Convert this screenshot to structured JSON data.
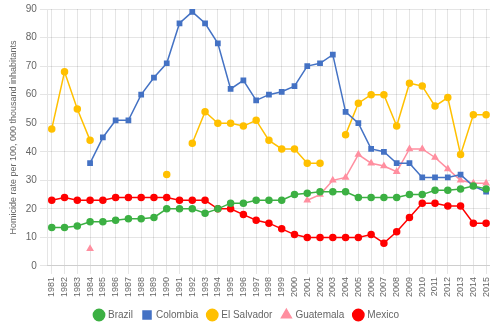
{
  "chart_data": {
    "type": "line",
    "x": [
      1981,
      1982,
      1983,
      1984,
      1985,
      1986,
      1987,
      1988,
      1989,
      1990,
      1991,
      1992,
      1993,
      1994,
      1995,
      1996,
      1997,
      1998,
      1999,
      2000,
      2001,
      2002,
      2003,
      2004,
      2005,
      2006,
      2007,
      2008,
      2009,
      2010,
      2011,
      2012,
      2013,
      2014,
      2015
    ],
    "series": [
      {
        "name": "Brazil",
        "color": "#3cb043",
        "marker": "circle",
        "values": [
          13.5,
          13.5,
          14.0,
          15.5,
          15.5,
          16.0,
          16.5,
          16.5,
          17.0,
          20.0,
          20.0,
          20.0,
          18.5,
          20.0,
          22.0,
          22.0,
          23.0,
          23.0,
          23.0,
          25.0,
          25.5,
          26.0,
          26.0,
          26.0,
          24.0,
          24.0,
          24.0,
          24.0,
          25.0,
          25.0,
          26.5,
          26.5,
          27.0,
          28.0,
          27.0
        ]
      },
      {
        "name": "Colombia",
        "color": "#4472c4",
        "marker": "square",
        "values": [
          null,
          null,
          null,
          36,
          45,
          51,
          51,
          60,
          66,
          71,
          85,
          89,
          85,
          78,
          62,
          65,
          58,
          60,
          61,
          63,
          70,
          71,
          74,
          54,
          50,
          41,
          40,
          36,
          36,
          31,
          31,
          31,
          32,
          28,
          26
        ]
      },
      {
        "name": "El Salvador",
        "color": "#ffc000",
        "marker": "circle",
        "values": [
          48,
          68,
          55,
          44,
          null,
          null,
          null,
          null,
          null,
          32,
          null,
          43,
          54,
          50,
          50,
          49,
          51,
          44,
          41,
          41,
          36,
          36,
          null,
          46,
          57,
          60,
          60,
          49,
          64,
          63,
          56,
          59,
          39,
          53,
          53
        ]
      },
      {
        "name": "Guatemala",
        "color": "#ff8fa0",
        "marker": "triangle",
        "values": [
          null,
          null,
          null,
          6,
          null,
          null,
          null,
          null,
          null,
          null,
          null,
          null,
          null,
          null,
          null,
          null,
          null,
          null,
          null,
          null,
          23,
          25,
          30,
          31,
          39,
          36,
          35,
          33,
          41,
          41,
          38,
          34,
          30,
          29,
          29
        ]
      },
      {
        "name": "Mexico",
        "color": "#ff0000",
        "marker": "circle",
        "values": [
          23,
          24,
          23,
          23,
          23,
          24,
          24,
          24,
          24,
          24,
          23,
          23,
          23,
          20,
          20,
          18,
          16,
          15,
          13,
          11,
          10,
          10,
          10,
          10,
          10,
          11,
          8,
          12,
          17,
          22,
          22,
          21,
          21,
          15,
          15
        ]
      }
    ],
    "ylabel": "Homicide rate per 100, 000 thousand inhabitants",
    "xlim": [
      1980.7,
      2015.3
    ],
    "xticks": [
      1981,
      1982,
      1983,
      1984,
      1985,
      1986,
      1987,
      1988,
      1989,
      1990,
      1991,
      1992,
      1993,
      1994,
      1995,
      1996,
      1997,
      1998,
      1999,
      2000,
      2001,
      2002,
      2003,
      2004,
      2005,
      2006,
      2007,
      2008,
      2009,
      2010,
      2011,
      2012,
      2013,
      2014,
      2015
    ],
    "ylim": [
      0,
      90
    ],
    "yticks": [
      0,
      10,
      20,
      30,
      40,
      50,
      60,
      70,
      80,
      90
    ],
    "grid": true,
    "legend": "bottom"
  }
}
